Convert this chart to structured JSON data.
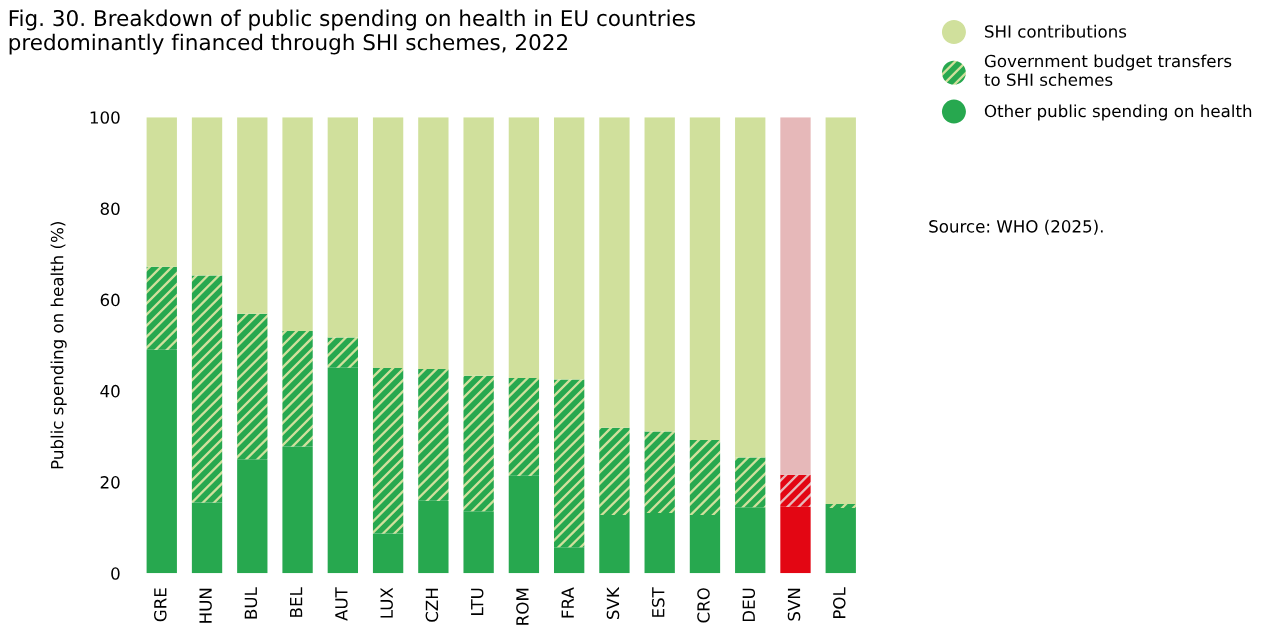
{
  "chart_data": {
    "type": "bar",
    "stacked": true,
    "title": "Fig. 30. Breakdown of public spending on health in EU countries\npredominantly financed through SHI schemes, 2022",
    "ylabel": "Public spending on health (%)",
    "categories": [
      "GRE",
      "HUN",
      "BUL",
      "BEL",
      "AUT",
      "LUX",
      "CZH",
      "LTU",
      "ROM",
      "FRA",
      "SVK",
      "EST",
      "CRO",
      "DEU",
      "SVN",
      "POL"
    ],
    "series": [
      {
        "name": "Other public spending on health",
        "color": "#27a84f",
        "colors": [
          "#27a84f",
          "#27a84f",
          "#27a84f",
          "#27a84f",
          "#27a84f",
          "#27a84f",
          "#27a84f",
          "#27a84f",
          "#27a84f",
          "#27a84f",
          "#27a84f",
          "#27a84f",
          "#27a84f",
          "#27a84f",
          "#e30613",
          "#27a84f"
        ],
        "values": [
          49.0,
          15.5,
          25.0,
          27.8,
          45.1,
          8.7,
          15.9,
          13.6,
          21.4,
          5.7,
          12.8,
          13.2,
          12.8,
          14.5,
          14.6,
          14.3
        ]
      },
      {
        "name": "Government budget transfers\nto SHI schemes",
        "color": "#27a84f",
        "colors": [
          "#27a84f",
          "#27a84f",
          "#27a84f",
          "#27a84f",
          "#27a84f",
          "#27a84f",
          "#27a84f",
          "#27a84f",
          "#27a84f",
          "#27a84f",
          "#27a84f",
          "#27a84f",
          "#27a84f",
          "#27a84f",
          "#e30613",
          "#27a84f"
        ],
        "values": [
          18.2,
          49.8,
          31.9,
          25.3,
          6.6,
          36.3,
          28.9,
          29.7,
          21.4,
          36.8,
          19.1,
          17.9,
          16.4,
          10.9,
          7.0,
          0.9
        ]
      },
      {
        "name": "SHI contributions",
        "color": "#d0e09c",
        "colors": [
          "#d0e09c",
          "#d0e09c",
          "#d0e09c",
          "#d0e09c",
          "#d0e09c",
          "#d0e09c",
          "#d0e09c",
          "#d0e09c",
          "#d0e09c",
          "#d0e09c",
          "#d0e09c",
          "#d0e09c",
          "#d0e09c",
          "#d0e09c",
          "#e6b8b9",
          "#d0e09c"
        ],
        "values": [
          32.8,
          34.7,
          43.1,
          46.9,
          48.3,
          55.0,
          55.2,
          56.7,
          57.2,
          57.5,
          68.1,
          68.9,
          70.8,
          74.6,
          78.4,
          84.8
        ]
      }
    ],
    "ylim": [
      0,
      100
    ],
    "yticks": [
      0,
      20,
      40,
      60,
      80,
      100
    ],
    "grid": false,
    "legend": "top right",
    "annotations": [
      "Source: WHO (2025)."
    ]
  }
}
